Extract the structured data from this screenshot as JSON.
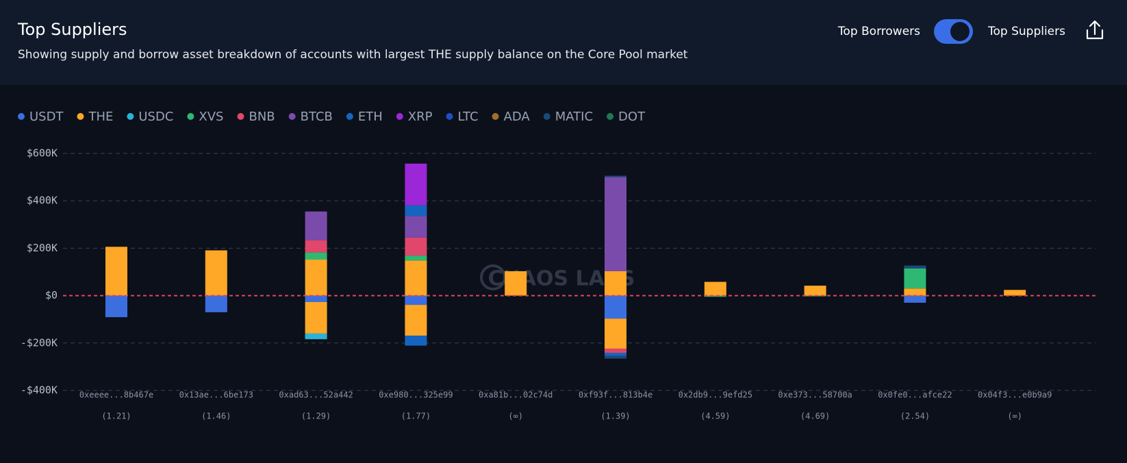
{
  "header": {
    "title": "Top Suppliers",
    "subtitle": "Showing supply and borrow asset breakdown of accounts with largest THE supply balance on the Core Pool market",
    "toggle_left": "Top Borrowers",
    "toggle_right": "Top Suppliers"
  },
  "chart_data": {
    "type": "bar",
    "stacked": true,
    "watermark": "CHAOS LABS",
    "categories": [
      "0xeeee...8b467e",
      "0x13ae...6be173",
      "0xad63...52a442",
      "0xe980...325e99",
      "0xa81b...02c74d",
      "0xf93f...813b4e",
      "0x2db9...9efd25",
      "0xe373...58700a",
      "0x0fe0...afce22",
      "0x04f3...e0b9a9"
    ],
    "health_factors": [
      "(1.21)",
      "(1.46)",
      "(1.29)",
      "(1.77)",
      "(∞)",
      "(1.39)",
      "(4.59)",
      "(4.69)",
      "(2.54)",
      "(∞)"
    ],
    "ylim": [
      -400000,
      600000
    ],
    "yticks": [
      {
        "value": -400000,
        "label": "-$400K"
      },
      {
        "value": -200000,
        "label": "-$200K"
      },
      {
        "value": 0,
        "label": "$0"
      },
      {
        "value": 200000,
        "label": "$200K"
      },
      {
        "value": 400000,
        "label": "$400K"
      },
      {
        "value": 600000,
        "label": "$600K"
      }
    ],
    "grid": true,
    "series": [
      {
        "name": "USDT",
        "color": "#3b6fe0",
        "values": [
          null,
          null,
          null,
          null,
          null,
          null,
          null,
          null,
          null,
          null
        ],
        "borrow_values": [
          -91000,
          -70000,
          -27000,
          -39000,
          null,
          -97000,
          null,
          null,
          -30000,
          null
        ]
      },
      {
        "name": "THE",
        "color": "#ffa726",
        "values": [
          206000,
          191000,
          152000,
          148000,
          103000,
          103000,
          58000,
          42000,
          30000,
          24000
        ],
        "borrow_values": [
          null,
          null,
          -133000,
          -130000,
          null,
          -127000,
          null,
          null,
          null,
          null
        ]
      },
      {
        "name": "USDC",
        "color": "#2ab3d6",
        "values": [
          null,
          null,
          null,
          null,
          null,
          null,
          null,
          null,
          null,
          null
        ],
        "borrow_values": [
          null,
          null,
          -24000,
          null,
          null,
          null,
          null,
          null,
          null,
          null
        ]
      },
      {
        "name": "XVS",
        "color": "#2eb872",
        "values": [
          null,
          null,
          30000,
          21000,
          null,
          null,
          null,
          null,
          85000,
          null
        ],
        "borrow_values": [
          null,
          null,
          null,
          null,
          null,
          null,
          -5000,
          -3000,
          null,
          null
        ]
      },
      {
        "name": "BNB",
        "color": "#e0476a",
        "values": [
          null,
          null,
          52000,
          76000,
          null,
          null,
          null,
          null,
          null,
          null
        ],
        "borrow_values": [
          null,
          null,
          null,
          null,
          null,
          -18000,
          null,
          null,
          null,
          null
        ]
      },
      {
        "name": "BTCB",
        "color": "#7b4bab",
        "values": [
          null,
          null,
          121000,
          91000,
          null,
          397000,
          null,
          null,
          null,
          null
        ],
        "borrow_values": [
          null,
          null,
          null,
          null,
          null,
          null,
          null,
          null,
          null,
          null
        ]
      },
      {
        "name": "ETH",
        "color": "#1565c0",
        "values": [
          null,
          null,
          null,
          45000,
          null,
          null,
          null,
          null,
          null,
          null
        ],
        "borrow_values": [
          null,
          null,
          null,
          -42000,
          null,
          -12000,
          null,
          null,
          null,
          null
        ]
      },
      {
        "name": "XRP",
        "color": "#9c27d6",
        "values": [
          null,
          null,
          null,
          176000,
          null,
          null,
          null,
          null,
          null,
          null
        ],
        "borrow_values": [
          null,
          null,
          null,
          null,
          null,
          null,
          null,
          null,
          null,
          null
        ]
      },
      {
        "name": "LTC",
        "color": "#1e4fc0",
        "values": [
          null,
          null,
          null,
          null,
          null,
          null,
          null,
          null,
          null,
          null
        ],
        "borrow_values": [
          null,
          null,
          null,
          null,
          null,
          null,
          null,
          null,
          null,
          null
        ]
      },
      {
        "name": "ADA",
        "color": "#a0702a",
        "values": [
          null,
          null,
          null,
          null,
          null,
          null,
          null,
          null,
          null,
          null
        ],
        "borrow_values": [
          null,
          null,
          null,
          null,
          null,
          null,
          null,
          null,
          null,
          null
        ]
      },
      {
        "name": "MATIC",
        "color": "#1a4a7a",
        "values": [
          null,
          null,
          null,
          null,
          null,
          6000,
          null,
          null,
          12000,
          null
        ],
        "borrow_values": [
          null,
          null,
          null,
          null,
          null,
          -12000,
          null,
          null,
          null,
          null
        ]
      },
      {
        "name": "DOT",
        "color": "#1e7a50",
        "values": [
          null,
          null,
          null,
          null,
          null,
          null,
          null,
          null,
          null,
          null
        ],
        "borrow_values": [
          null,
          null,
          null,
          null,
          null,
          null,
          null,
          null,
          null,
          null
        ]
      }
    ]
  }
}
